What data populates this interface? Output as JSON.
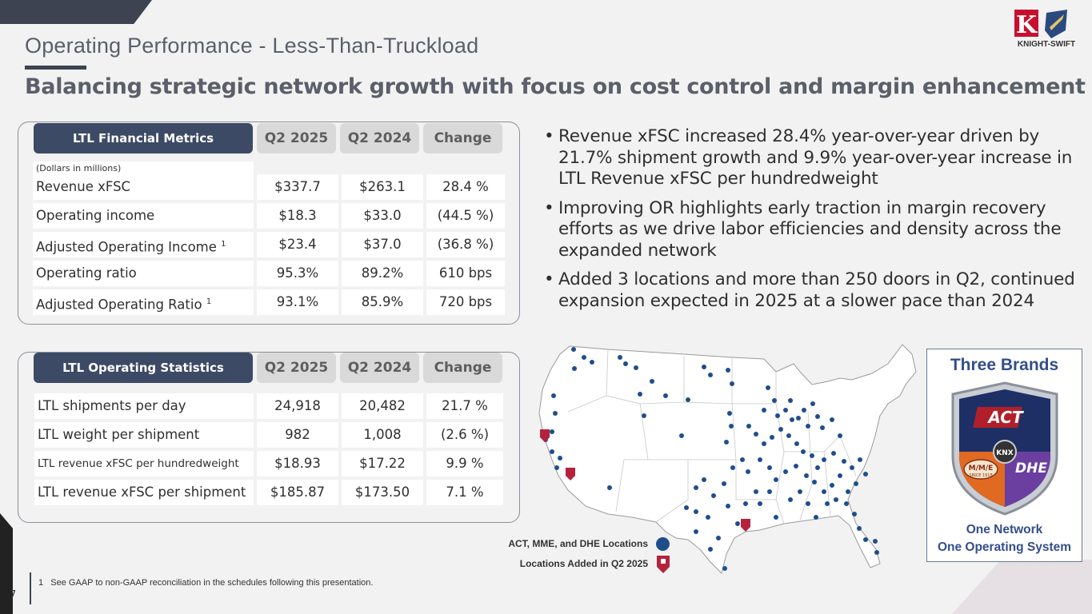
{
  "page": {
    "title": "Operating Performance - Less-Than-Truckload",
    "subtitle": "Balancing strategic network growth with focus on cost control and margin enhancement",
    "page_number": "7",
    "footnote_marker": "1",
    "footnote": "See GAAP to non-GAAP reconciliation in the schedules following this presentation.",
    "logo_text": "KNIGHT-SWIFT",
    "logo_letter": "K"
  },
  "financial": {
    "header": [
      "LTL Financial Metrics",
      "Q2 2025",
      "Q2 2024",
      "Change"
    ],
    "note": "(Dollars in millions)",
    "rows": [
      {
        "label": "Revenue xFSC",
        "sup": "",
        "q2025": "$337.7",
        "q2024": "$263.1",
        "change": "28.4 %"
      },
      {
        "label": "Operating income",
        "sup": "",
        "q2025": "$18.3",
        "q2024": "$33.0",
        "change": "(44.5 %)"
      },
      {
        "label": "Adjusted Operating Income",
        "sup": "1",
        "q2025": "$23.4",
        "q2024": "$37.0",
        "change": "(36.8 %)"
      },
      {
        "label": "Operating ratio",
        "sup": "",
        "q2025": "95.3%",
        "q2024": "89.2%",
        "change": "610 bps"
      },
      {
        "label": "Adjusted Operating Ratio",
        "sup": "1",
        "q2025": "93.1%",
        "q2024": "85.9%",
        "change": "720 bps"
      }
    ]
  },
  "operating": {
    "header": [
      "LTL Operating Statistics",
      "Q2 2025",
      "Q2 2024",
      "Change"
    ],
    "rows": [
      {
        "label": "LTL shipments per day",
        "q2025": "24,918",
        "q2024": "20,482",
        "change": "21.7 %"
      },
      {
        "label": "LTL weight per shipment",
        "q2025": "982",
        "q2024": "1,008",
        "change": "(2.6 %)"
      },
      {
        "label": "LTL revenue xFSC per hundredweight",
        "q2025": "$18.93",
        "q2024": "$17.22",
        "change": "9.9 %"
      },
      {
        "label": "LTL revenue xFSC per shipment",
        "q2025": "$185.87",
        "q2024": "$173.50",
        "change": "7.1 %"
      }
    ]
  },
  "bullets": [
    "Revenue xFSC increased 28.4% year-over-year driven by 21.7% shipment growth and 9.9% year-over-year increase in LTL Revenue xFSC per hundredweight",
    "Improving OR highlights early traction in margin recovery efforts as we drive labor efficiencies and density across the expanded network",
    "Added 3 locations and more than 250 doors in Q2, continued expansion expected in 2025 at a slower pace than 2024"
  ],
  "legend": {
    "existing": "ACT, MME, and DHE Locations",
    "added": "Locations Added in Q2 2025"
  },
  "brands": {
    "title": "Three Brands",
    "badge_top": "ACT",
    "badge_center": "KNX",
    "badge_left": "M/M/E",
    "badge_left_sub": "SINCE 1918",
    "badge_right": "DHE",
    "footer_line1": "One Network",
    "footer_line2": "One Operating System"
  },
  "colors": {
    "header_dark": "#3d4a66",
    "header_light": "#d9d9d9",
    "dot_blue": "#1f4e8c",
    "marker_red": "#b5223c",
    "brand_blue": "#344e8a"
  }
}
